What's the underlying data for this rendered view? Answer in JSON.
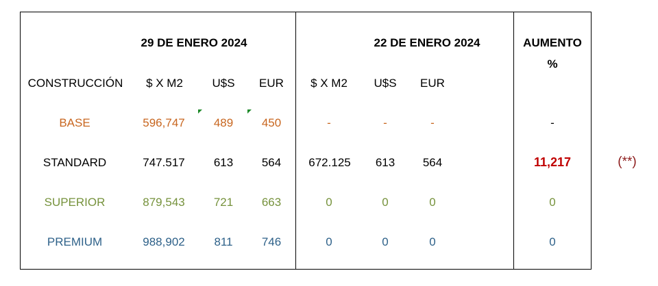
{
  "headers": {
    "date_current": "29 DE ENERO 2024",
    "date_previous": "22 DE ENERO 2024",
    "increase_line1": "AUMENTO",
    "increase_line2": "%"
  },
  "columns": {
    "construction": "CONSTRUCCIÓN",
    "price_m2": "$ X M2",
    "usd": "U$S",
    "eur": "EUR",
    "price_m2_prev": "$ X M2",
    "usd_prev": "U$S",
    "eur_prev": "EUR"
  },
  "rows": [
    {
      "name": "BASE",
      "price_m2": "596,747",
      "usd": "489",
      "eur": "450",
      "price_m2_prev": "-",
      "usd_prev": "-",
      "eur_prev": "-",
      "increase": "-",
      "color": "#c8661f"
    },
    {
      "name": "STANDARD",
      "price_m2": "747.517",
      "usd": "613",
      "eur": "564",
      "price_m2_prev": "672.125",
      "usd_prev": "613",
      "eur_prev": "564",
      "increase": "11,217",
      "color": "#000000"
    },
    {
      "name": "SUPERIOR",
      "price_m2": "879,543",
      "usd": "721",
      "eur": "663",
      "price_m2_prev": "0",
      "usd_prev": "0",
      "eur_prev": "0",
      "increase": "0",
      "color": "#76923c"
    },
    {
      "name": "PREMIUM",
      "price_m2": "988,902",
      "usd": "811",
      "eur": "746",
      "price_m2_prev": "0",
      "usd_prev": "0",
      "eur_prev": "0",
      "increase": "0",
      "color": "#2e6189"
    }
  ],
  "note": "(**)",
  "colors": {
    "increase_highlight": "#c00000",
    "note": "#8b1a1a",
    "cell_marker": "#1f8a2a"
  }
}
